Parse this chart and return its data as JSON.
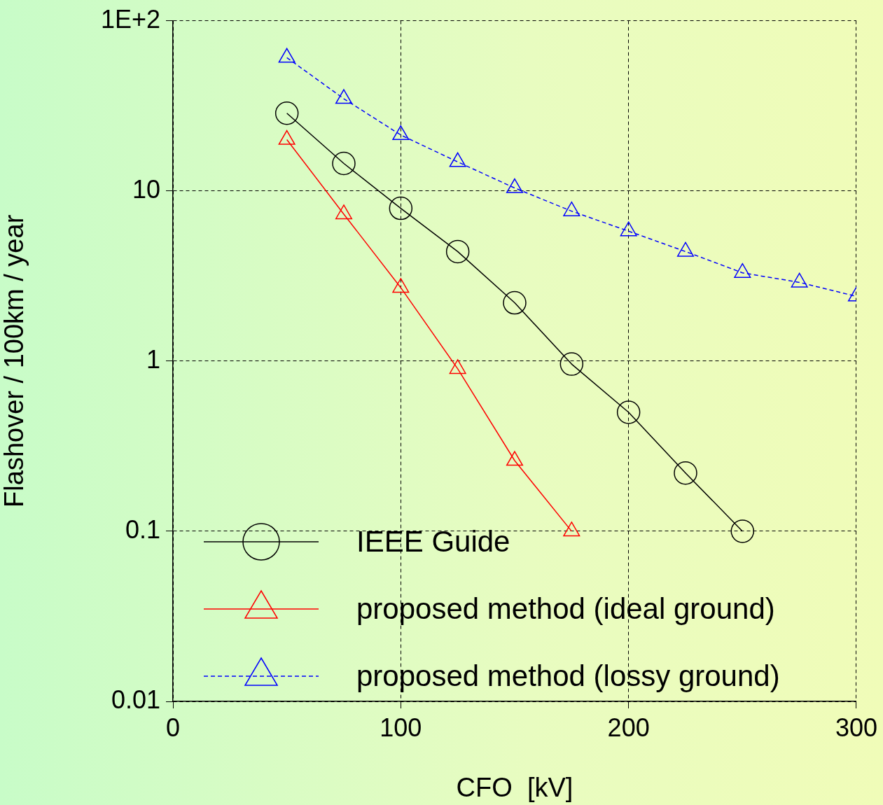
{
  "chart_data": {
    "type": "line",
    "xlabel": "CFO  [kV]",
    "ylabel": "Flashover / 100km / year",
    "log": "y",
    "grid": true,
    "legend": "bottom left",
    "xlim": [
      0,
      300
    ],
    "xticks": [
      0,
      100,
      200,
      300
    ],
    "ylim": [
      0.01,
      100
    ],
    "yticks": [
      {
        "value": 100,
        "label": "1E+2"
      },
      10,
      1,
      0.1,
      0.01
    ],
    "series": [
      {
        "name": "IEEE Guide",
        "color": "#000000",
        "marker": "circle",
        "line_style": "solid",
        "x": [
          50,
          75,
          100,
          125,
          150,
          175,
          200,
          225,
          250
        ],
        "values": [
          28.6,
          14.5,
          7.9,
          4.4,
          2.2,
          0.96,
          0.5,
          0.22,
          0.1
        ]
      },
      {
        "name": "proposed method (ideal ground)",
        "color": "#ff0000",
        "marker": "triangle",
        "line_style": "solid",
        "x": [
          50,
          75,
          100,
          125,
          150,
          175
        ],
        "values": [
          20,
          7.3,
          2.7,
          0.9,
          0.26,
          0.1
        ]
      },
      {
        "name": "proposed method (lossy ground)",
        "color": "#0000ff",
        "marker": "triangle",
        "line_style": "dashed",
        "x": [
          50,
          75,
          100,
          125,
          150,
          175,
          200,
          225,
          250,
          275,
          300
        ],
        "values": [
          60.7,
          34.8,
          21.3,
          14.8,
          10.4,
          7.6,
          5.8,
          4.4,
          3.3,
          2.9,
          2.4
        ]
      }
    ]
  }
}
